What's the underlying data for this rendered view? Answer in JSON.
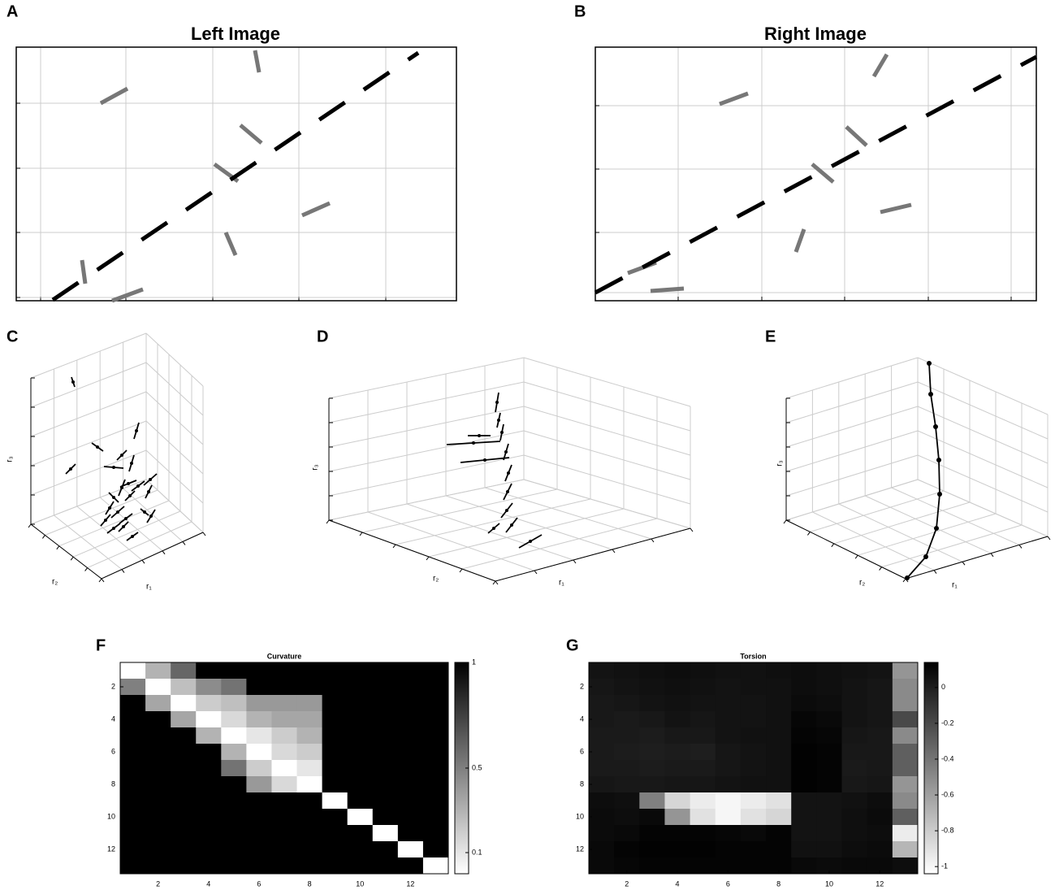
{
  "panel_labels": [
    "A",
    "B",
    "C",
    "D",
    "E",
    "F",
    "G"
  ],
  "images": [
    {
      "title": "Left Image"
    },
    {
      "title": "Right Image"
    }
  ],
  "axes_3d": [
    {
      "x": "r₁",
      "y": "r₂",
      "z": "r₃"
    },
    {
      "x": "r₁",
      "y": "r₂",
      "z": "r₃"
    },
    {
      "x": "r₁",
      "y": "r₂",
      "z": "r₃"
    }
  ],
  "chart_data": [
    {
      "type": "heatmap",
      "title": "Curvature",
      "colormap": "gray_r",
      "xlim": [
        0.5,
        13.5
      ],
      "ylim": [
        0.5,
        13.5
      ],
      "xticks": [
        2,
        4,
        6,
        8,
        10,
        12
      ],
      "yticks": [
        2,
        4,
        6,
        8,
        10,
        12
      ],
      "zlim": [
        0,
        1
      ],
      "zticks": [
        0.1,
        0.5,
        1
      ],
      "z": [
        [
          0,
          0.3,
          0.6,
          1,
          1,
          1,
          1,
          1,
          1,
          1,
          1,
          1,
          1
        ],
        [
          0.5,
          0,
          0.25,
          0.45,
          0.55,
          1,
          1,
          1,
          1,
          1,
          1,
          1,
          1
        ],
        [
          1,
          0.35,
          0,
          0.2,
          0.25,
          0.4,
          0.4,
          0.4,
          1,
          1,
          1,
          1,
          1
        ],
        [
          1,
          1,
          0.35,
          0,
          0.15,
          0.3,
          0.35,
          0.35,
          1,
          1,
          1,
          1,
          1
        ],
        [
          1,
          1,
          1,
          0.3,
          0,
          0.1,
          0.2,
          0.3,
          1,
          1,
          1,
          1,
          1
        ],
        [
          1,
          1,
          1,
          1,
          0.3,
          0,
          0.15,
          0.2,
          1,
          1,
          1,
          1,
          1
        ],
        [
          1,
          1,
          1,
          1,
          0.55,
          0.2,
          0,
          0.1,
          1,
          1,
          1,
          1,
          1
        ],
        [
          1,
          1,
          1,
          1,
          1,
          0.4,
          0.15,
          0,
          1,
          1,
          1,
          1,
          1
        ],
        [
          1,
          1,
          1,
          1,
          1,
          1,
          1,
          1,
          0,
          1,
          1,
          1,
          1
        ],
        [
          1,
          1,
          1,
          1,
          1,
          1,
          1,
          1,
          1,
          0,
          1,
          1,
          1
        ],
        [
          1,
          1,
          1,
          1,
          1,
          1,
          1,
          1,
          1,
          1,
          0,
          1,
          1
        ],
        [
          1,
          1,
          1,
          1,
          1,
          1,
          1,
          1,
          1,
          1,
          1,
          0,
          1
        ],
        [
          1,
          1,
          1,
          1,
          1,
          1,
          1,
          1,
          1,
          1,
          1,
          1,
          0
        ]
      ]
    },
    {
      "type": "heatmap",
      "title": "Torsion",
      "colormap": "gray_r",
      "xlim": [
        0.5,
        13.5
      ],
      "ylim": [
        0.5,
        13.5
      ],
      "xticks": [
        2,
        4,
        6,
        8,
        10,
        12
      ],
      "yticks": [
        2,
        4,
        6,
        8,
        10,
        12
      ],
      "zlim": [
        -1.04,
        0.14
      ],
      "zticks": [
        0,
        -0.2,
        -0.4,
        -0.6,
        -0.8,
        -1
      ],
      "z": [
        [
          0.05,
          0.06,
          0.07,
          0.08,
          0.07,
          0.06,
          0.06,
          0.07,
          0.08,
          0.07,
          0.06,
          0.05,
          -0.55
        ],
        [
          0.04,
          0.05,
          0.06,
          0.07,
          0.06,
          0.05,
          0.06,
          0.06,
          0.08,
          0.07,
          0.05,
          0.04,
          -0.5
        ],
        [
          0.03,
          0.04,
          0.05,
          0.06,
          0.05,
          0.05,
          0.05,
          0.06,
          0.09,
          0.08,
          0.05,
          0.04,
          -0.5
        ],
        [
          0.03,
          0.02,
          0.03,
          0.05,
          0.04,
          0.05,
          0.05,
          0.06,
          0.11,
          0.1,
          0.05,
          0.04,
          -0.2
        ],
        [
          0.02,
          0.02,
          0.01,
          0.03,
          0.03,
          0.05,
          0.06,
          0.06,
          0.12,
          0.11,
          0.04,
          0.03,
          -0.5
        ],
        [
          0.02,
          0.01,
          0.0,
          0.01,
          0.0,
          0.04,
          0.05,
          0.06,
          0.13,
          0.12,
          0.03,
          0.03,
          -0.3
        ],
        [
          0.02,
          0.02,
          0.01,
          0.02,
          0.02,
          0.04,
          0.05,
          0.06,
          0.13,
          0.12,
          0.02,
          0.03,
          -0.3
        ],
        [
          0.04,
          0.03,
          0.03,
          0.04,
          0.04,
          0.05,
          0.06,
          0.06,
          0.13,
          0.12,
          0.03,
          0.04,
          -0.55
        ],
        [
          0.08,
          0.07,
          -0.45,
          -0.85,
          -0.95,
          -1.0,
          -0.95,
          -0.9,
          0.05,
          0.05,
          0.06,
          0.08,
          -0.5
        ],
        [
          0.09,
          0.08,
          0.1,
          -0.55,
          -0.9,
          -1.0,
          -0.9,
          -0.85,
          0.05,
          0.05,
          0.07,
          0.09,
          -0.3
        ],
        [
          0.09,
          0.1,
          0.12,
          0.12,
          0.12,
          0.11,
          0.1,
          0.12,
          0.05,
          0.05,
          0.07,
          0.08,
          -0.95
        ],
        [
          0.1,
          0.12,
          0.13,
          0.13,
          0.13,
          0.12,
          0.12,
          0.12,
          0.06,
          0.06,
          0.08,
          0.09,
          -0.7
        ],
        [
          0.1,
          0.11,
          0.12,
          0.12,
          0.12,
          0.12,
          0.12,
          0.12,
          0.1,
          0.09,
          0.1,
          0.1,
          0.08
        ]
      ]
    }
  ]
}
